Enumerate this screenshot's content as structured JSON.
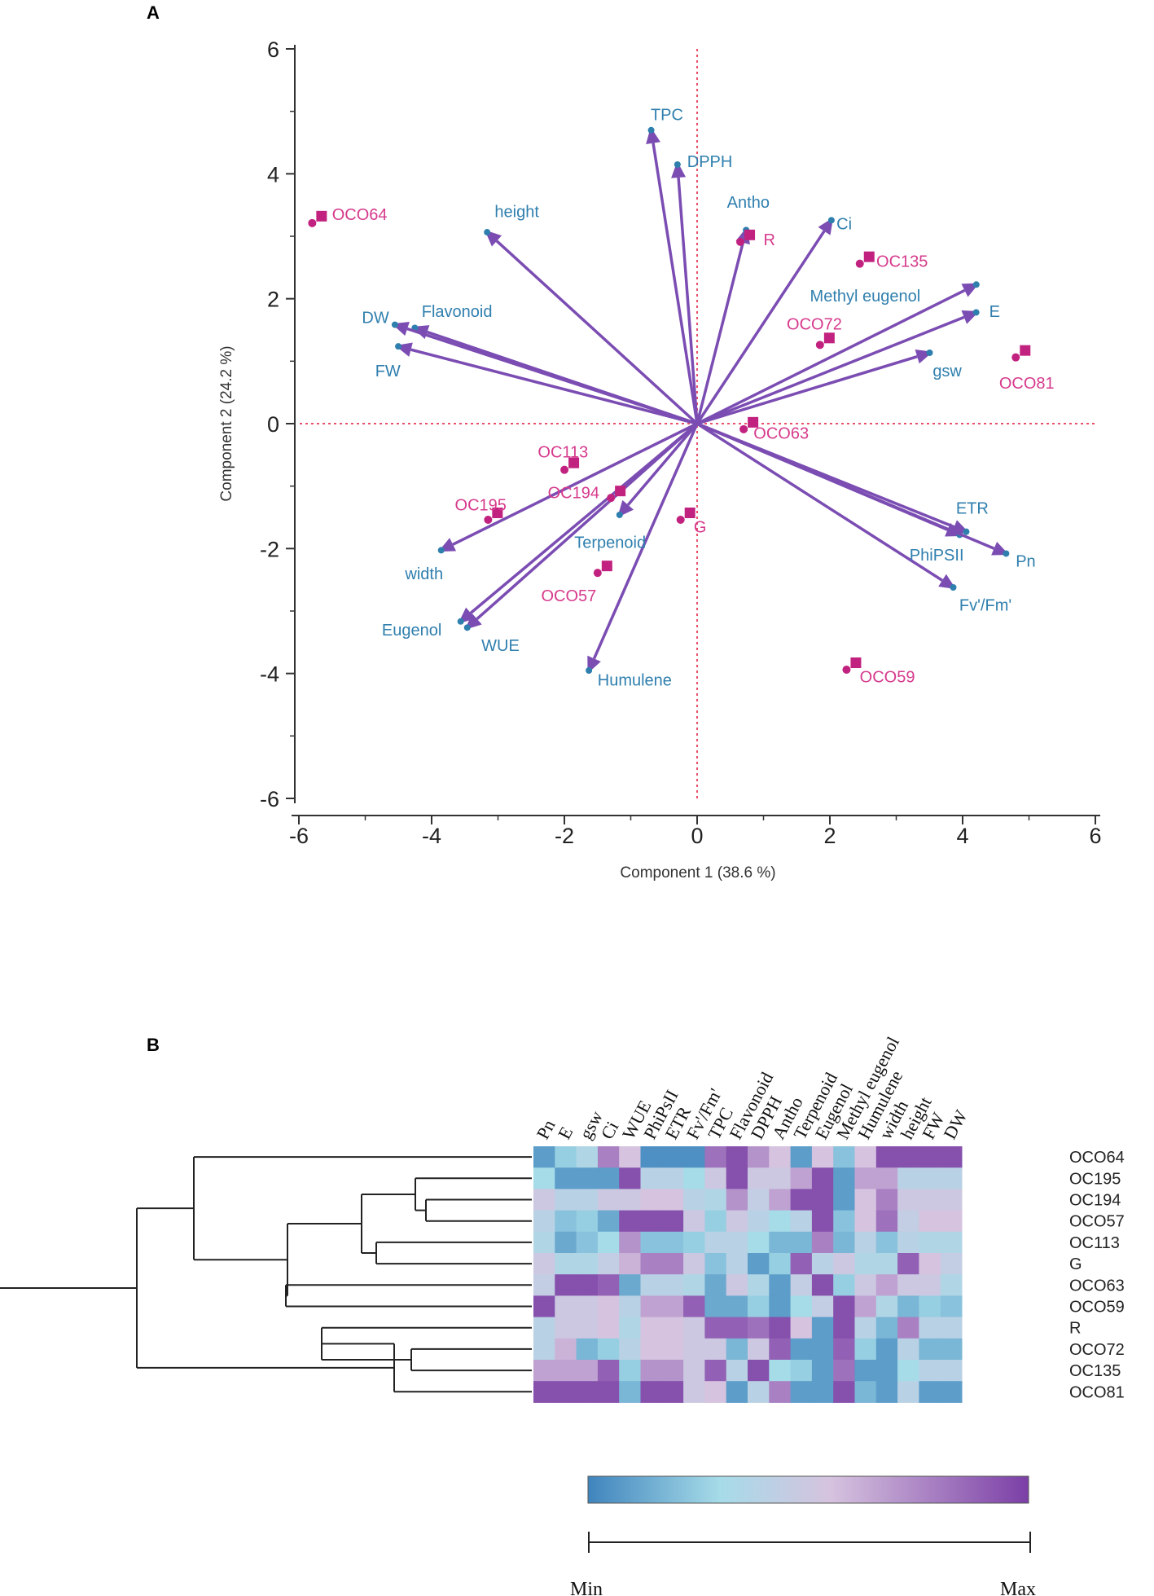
{
  "colors": {
    "arrow": "#7b4db3",
    "sample": "#c2227f",
    "var_label": "#2f7fae",
    "sample_label": "#d63a8c",
    "refline": "#e8506a",
    "axis": "#333333",
    "heat_min": "#3f84bd",
    "heat_low": "#a6dbe8",
    "heat_mid": "#d6c3df",
    "heat_max": "#7b3fa6"
  },
  "chart_data": [
    {
      "type": "scatter",
      "panel": "A",
      "subtype": "pca-biplot",
      "xlabel": "Component 1  (38.6 %)",
      "ylabel": "Component 2  (24.2 %)",
      "xlim": [
        -6,
        6
      ],
      "ylim": [
        -6,
        6
      ],
      "xticks": [
        "-6",
        "-4",
        "-2",
        "0",
        "2",
        "4",
        "6"
      ],
      "yticks": [
        "6",
        "4",
        "2",
        "0",
        "-2",
        "-4",
        "-6"
      ],
      "loadings": [
        {
          "name": "TPC",
          "x": -0.7,
          "y": 4.75,
          "lx": -0.7,
          "ly": 4.95
        },
        {
          "name": "DPPH",
          "x": -0.3,
          "y": 4.2,
          "lx": -0.15,
          "ly": 4.2
        },
        {
          "name": "Antho",
          "x": 0.75,
          "y": 3.15,
          "lx": 0.45,
          "ly": 3.55
        },
        {
          "name": "Ci",
          "x": 2.05,
          "y": 3.3,
          "lx": 2.1,
          "ly": 3.2
        },
        {
          "name": "height",
          "x": -3.2,
          "y": 3.1,
          "lx": -3.05,
          "ly": 3.4
        },
        {
          "name": "Methyl eugenol",
          "x": 4.25,
          "y": 2.25,
          "lx": 1.7,
          "ly": 2.05
        },
        {
          "name": "E",
          "x": 4.25,
          "y": 1.8,
          "lx": 4.4,
          "ly": 1.8
        },
        {
          "name": "gsw",
          "x": 3.55,
          "y": 1.15,
          "lx": 3.55,
          "ly": 0.85
        },
        {
          "name": "Flavonoid",
          "x": -4.3,
          "y": 1.55,
          "lx": -4.15,
          "ly": 1.8
        },
        {
          "name": "DW",
          "x": -4.6,
          "y": 1.6,
          "lx": -5.05,
          "ly": 1.7
        },
        {
          "name": "FW",
          "x": -4.55,
          "y": 1.25,
          "lx": -4.85,
          "ly": 0.85
        },
        {
          "name": "ETR",
          "x": 4.0,
          "y": -1.8,
          "lx": 3.9,
          "ly": -1.35
        },
        {
          "name": "Pn",
          "x": 4.7,
          "y": -2.1,
          "lx": 4.8,
          "ly": -2.2
        },
        {
          "name": "PhiPSII",
          "x": 4.1,
          "y": -1.75,
          "lx": 3.2,
          "ly": -2.1
        },
        {
          "name": "Fv'/Fm'",
          "x": 3.9,
          "y": -2.65,
          "lx": 3.95,
          "ly": -2.9
        },
        {
          "name": "Terpenoid",
          "x": -1.2,
          "y": -1.5,
          "lx": -1.85,
          "ly": -1.9
        },
        {
          "name": "width",
          "x": -3.9,
          "y": -2.05,
          "lx": -4.4,
          "ly": -2.4
        },
        {
          "name": "Eugenol",
          "x": -3.6,
          "y": -3.2,
          "lx": -4.75,
          "ly": -3.3
        },
        {
          "name": "WUE",
          "x": -3.5,
          "y": -3.3,
          "lx": -3.25,
          "ly": -3.55
        },
        {
          "name": "Humulene",
          "x": -1.65,
          "y": -4.0,
          "lx": -1.5,
          "ly": -4.1
        }
      ],
      "samples": [
        {
          "name": "OCO64",
          "x": -5.75,
          "y": 3.25,
          "lx": -5.5,
          "ly": 3.35
        },
        {
          "name": "OC135",
          "x": 2.5,
          "y": 2.6,
          "lx": 2.7,
          "ly": 2.6
        },
        {
          "name": "R",
          "x": 0.7,
          "y": 2.95,
          "lx": 1.0,
          "ly": 2.95
        },
        {
          "name": "OCO72",
          "x": 1.9,
          "y": 1.3,
          "lx": 1.35,
          "ly": 1.6
        },
        {
          "name": "OCO81",
          "x": 4.85,
          "y": 1.1,
          "lx": 4.55,
          "ly": 0.65
        },
        {
          "name": "OCO63",
          "x": 0.75,
          "y": -0.05,
          "lx": 0.85,
          "ly": -0.15
        },
        {
          "name": "OC113",
          "x": -1.95,
          "y": -0.7,
          "lx": -2.4,
          "ly": -0.45
        },
        {
          "name": "OC194",
          "x": -1.25,
          "y": -1.15,
          "lx": -2.25,
          "ly": -1.1
        },
        {
          "name": "OC195",
          "x": -3.1,
          "y": -1.5,
          "lx": -3.65,
          "ly": -1.3
        },
        {
          "name": "G",
          "x": -0.2,
          "y": -1.5,
          "lx": -0.05,
          "ly": -1.65
        },
        {
          "name": "OCO57",
          "x": -1.45,
          "y": -2.35,
          "lx": -2.35,
          "ly": -2.75
        },
        {
          "name": "OCO59",
          "x": 2.3,
          "y": -3.9,
          "lx": 2.45,
          "ly": -4.05
        }
      ]
    },
    {
      "type": "heatmap",
      "panel": "B",
      "columns": [
        "Pn",
        "E",
        "gsw",
        "Ci",
        "WUE",
        "PhiPsII",
        "ETR",
        "Fv'/Fm'",
        "TPC",
        "Flavonoid",
        "DPPH",
        "Antho",
        "Terpenoid",
        "Eugenol",
        "Methyl eugenol",
        "Humulene",
        "width",
        "height",
        "FW",
        "DW"
      ],
      "rows": [
        "OCO64",
        "OC195",
        "OC194",
        "OCO57",
        "OC113",
        "G",
        "OCO63",
        "OCO59",
        "R",
        "OCO72",
        "OC135",
        "OCO81"
      ],
      "scale": [
        0,
        1
      ],
      "values": [
        [
          0.1,
          0.3,
          0.4,
          0.8,
          0.6,
          0.05,
          0.05,
          0.05,
          0.85,
          0.95,
          0.75,
          0.6,
          0.1,
          0.6,
          0.25,
          0.6,
          0.95,
          0.95,
          0.95,
          0.95
        ],
        [
          0.35,
          0.1,
          0.1,
          0.1,
          0.95,
          0.45,
          0.45,
          0.35,
          0.55,
          0.95,
          0.55,
          0.55,
          0.7,
          0.95,
          0.1,
          0.7,
          0.7,
          0.45,
          0.45,
          0.45
        ],
        [
          0.55,
          0.45,
          0.45,
          0.55,
          0.55,
          0.6,
          0.6,
          0.45,
          0.4,
          0.75,
          0.5,
          0.7,
          0.95,
          0.95,
          0.1,
          0.6,
          0.8,
          0.55,
          0.55,
          0.55
        ],
        [
          0.45,
          0.25,
          0.3,
          0.15,
          0.95,
          0.95,
          0.95,
          0.55,
          0.3,
          0.55,
          0.45,
          0.35,
          0.45,
          0.95,
          0.25,
          0.6,
          0.85,
          0.5,
          0.6,
          0.6
        ],
        [
          0.4,
          0.15,
          0.25,
          0.35,
          0.75,
          0.25,
          0.25,
          0.3,
          0.45,
          0.45,
          0.35,
          0.2,
          0.2,
          0.8,
          0.2,
          0.45,
          0.25,
          0.45,
          0.4,
          0.4
        ],
        [
          0.55,
          0.4,
          0.4,
          0.5,
          0.65,
          0.8,
          0.8,
          0.55,
          0.25,
          0.45,
          0.1,
          0.3,
          0.9,
          0.45,
          0.55,
          0.4,
          0.4,
          0.9,
          0.6,
          0.5
        ],
        [
          0.5,
          0.95,
          0.95,
          0.9,
          0.15,
          0.45,
          0.45,
          0.4,
          0.15,
          0.55,
          0.4,
          0.1,
          0.5,
          0.95,
          0.3,
          0.55,
          0.7,
          0.55,
          0.55,
          0.4
        ],
        [
          0.95,
          0.55,
          0.55,
          0.6,
          0.45,
          0.7,
          0.7,
          0.9,
          0.15,
          0.15,
          0.3,
          0.1,
          0.35,
          0.5,
          0.95,
          0.7,
          0.4,
          0.2,
          0.3,
          0.25
        ],
        [
          0.45,
          0.55,
          0.55,
          0.6,
          0.4,
          0.6,
          0.6,
          0.55,
          0.9,
          0.9,
          0.85,
          0.95,
          0.6,
          0.1,
          0.95,
          0.45,
          0.2,
          0.8,
          0.45,
          0.45
        ],
        [
          0.45,
          0.65,
          0.2,
          0.3,
          0.45,
          0.6,
          0.6,
          0.55,
          0.55,
          0.2,
          0.55,
          0.9,
          0.1,
          0.1,
          0.9,
          0.3,
          0.1,
          0.45,
          0.2,
          0.2
        ],
        [
          0.7,
          0.7,
          0.7,
          0.9,
          0.3,
          0.75,
          0.75,
          0.55,
          0.9,
          0.45,
          0.95,
          0.35,
          0.3,
          0.1,
          0.85,
          0.1,
          0.1,
          0.35,
          0.45,
          0.45
        ],
        [
          0.95,
          0.95,
          0.95,
          0.95,
          0.2,
          0.95,
          0.95,
          0.55,
          0.6,
          0.1,
          0.45,
          0.8,
          0.1,
          0.1,
          0.95,
          0.2,
          0.1,
          0.45,
          0.1,
          0.1
        ]
      ],
      "legend": {
        "min_label": "Min",
        "max_label": "Max"
      }
    }
  ],
  "panel_a_letter": "A",
  "panel_b_letter": "B"
}
